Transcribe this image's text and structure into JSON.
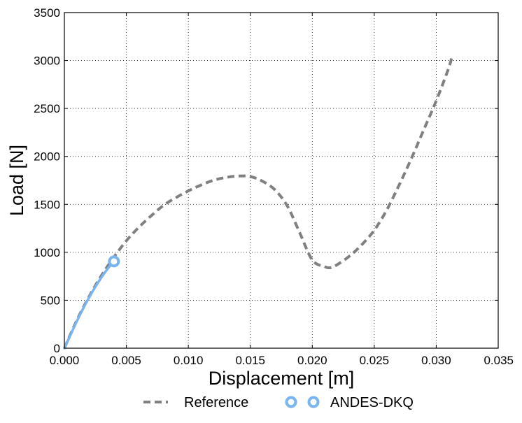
{
  "chart_data": {
    "type": "line",
    "xlabel": "Displacement [m]",
    "ylabel": "Load [N]",
    "xlim": [
      0,
      0.035
    ],
    "ylim": [
      0,
      3500
    ],
    "xticks": [
      "0.000",
      "0.005",
      "0.010",
      "0.015",
      "0.020",
      "0.025",
      "0.030",
      "0.035"
    ],
    "yticks": [
      "0",
      "500",
      "1000",
      "1500",
      "2000",
      "2500",
      "3000",
      "3500"
    ],
    "grid": true,
    "legend_position": "bottom",
    "series": [
      {
        "name": "Reference",
        "style": "dashed",
        "color": "#808080",
        "x": [
          0.0,
          0.001,
          0.002,
          0.003,
          0.004,
          0.005,
          0.006,
          0.007,
          0.008,
          0.009,
          0.01,
          0.011,
          0.012,
          0.013,
          0.014,
          0.015,
          0.016,
          0.017,
          0.018,
          0.019,
          0.02,
          0.021,
          0.0215,
          0.022,
          0.023,
          0.024,
          0.025,
          0.026,
          0.027,
          0.028,
          0.029,
          0.03,
          0.031,
          0.0313
        ],
        "y": [
          0,
          290,
          540,
          760,
          950,
          1120,
          1260,
          1380,
          1490,
          1570,
          1640,
          1700,
          1750,
          1780,
          1795,
          1790,
          1740,
          1650,
          1480,
          1200,
          920,
          850,
          840,
          870,
          960,
          1080,
          1230,
          1440,
          1700,
          1980,
          2280,
          2580,
          2920,
          3060
        ]
      },
      {
        "name": "ANDES-DKQ",
        "style": "solid-with-end-marker",
        "color": "#78b4f0",
        "x": [
          0.0,
          0.0005,
          0.001,
          0.0015,
          0.002,
          0.0025,
          0.003,
          0.0035,
          0.004
        ],
        "y": [
          0,
          140,
          280,
          410,
          530,
          640,
          740,
          830,
          905
        ],
        "markers_x": [
          0.004
        ],
        "markers_y": [
          905
        ]
      }
    ]
  }
}
